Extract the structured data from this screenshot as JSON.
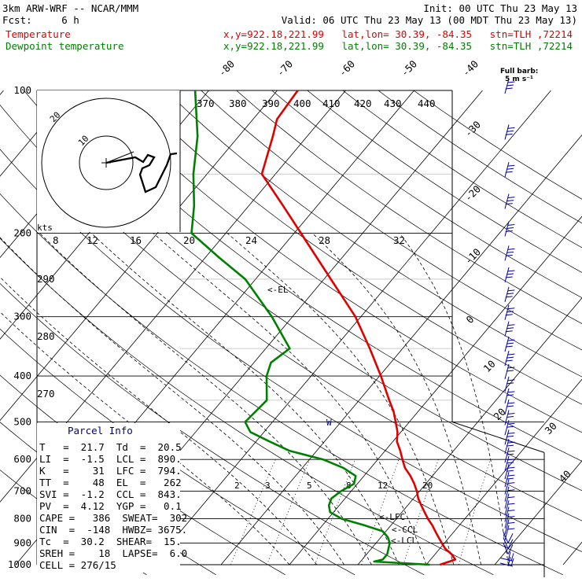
{
  "header": {
    "model": "3km ARW-WRF -- NCAR/MMM",
    "init": "Init: 00 UTC Thu 23 May 13",
    "fcst": "Fcst:     6 h",
    "valid": "Valid: 06 UTC Thu 23 May 13 (00 MDT Thu 23 May 13)",
    "temp_label": "Temperature",
    "temp_loc": "x,y=922.18,221.99   lat,lon= 30.39, -84.35   stn=TLH ,72214",
    "dew_label": "Dewpoint temperature",
    "dew_loc": "x,y=922.18,221.99   lat,lon= 30.39, -84.35   stn=TLH ,72214"
  },
  "colors": {
    "temperature": "#e00000",
    "dewpoint": "#008000",
    "header_red": "#e00000",
    "header_green": "#008000",
    "parcel_title": "#000080",
    "barbs": "#0000a0"
  },
  "barb_legend": {
    "line1": "Full barb:",
    "line2": "5 m s⁻¹"
  },
  "hodograph": {
    "kts_label": "kts",
    "ring_labels": [
      "10",
      "20"
    ]
  },
  "mixing_ratio_labels": [
    "2",
    "3",
    "5",
    "8",
    "12",
    "20"
  ],
  "level_markers": {
    "el": "<-EL",
    "w": "W",
    "lfc": "<-LFC",
    "ccl": "<-CCL",
    "lcl": "<-LCL"
  },
  "parcel_info": {
    "title": "Parcel Info",
    "rows": [
      "T   =  21.7  Td  =  20.5",
      "LI  =  -1.5  LCL =  890.",
      "K   =    31  LFC =  794.",
      "TT  =    48  EL  =   262",
      "SVI =  -1.2  CCL =  843.",
      "PV  =  4.12  YGP =   0.1",
      "CAPE =   386  SWEAT=  302",
      "CIN  =  -148  HWBZ= 3675.",
      "Tc  =  30.2  SHEAR=  15.",
      "SREH =    18  LAPSE=  6.0",
      "CELL = 276/15"
    ]
  },
  "chart_data": {
    "type": "line",
    "title": "3km ARW-WRF -- NCAR/MMM",
    "diagram": "skew-T log-p",
    "y_axis": {
      "label": "",
      "scale": "log",
      "range": [
        1000,
        100
      ],
      "ticks": [
        100,
        200,
        300,
        400,
        500,
        600,
        700,
        800,
        900,
        1000
      ]
    },
    "skewed_isotherm_labels": [
      -80,
      -70,
      -60,
      -50,
      -40,
      -30,
      -20,
      -10,
      0,
      10,
      20,
      30,
      40
    ],
    "theta_labels": [
      370,
      380,
      390,
      400,
      410,
      420,
      430,
      440
    ],
    "theta_side_labels": [
      290,
      280,
      270
    ],
    "theta_e_labels": [
      8,
      12,
      16,
      20,
      24,
      28,
      32
    ],
    "series": [
      {
        "name": "Temperature",
        "color": "#e00000",
        "points": [
          [
            1000,
            22.0
          ],
          [
            985,
            23.0
          ],
          [
            975,
            23.6
          ],
          [
            950,
            22.4
          ],
          [
            925,
            20.8
          ],
          [
            900,
            19.6
          ],
          [
            875,
            18.4
          ],
          [
            850,
            17.2
          ],
          [
            825,
            16.0
          ],
          [
            800,
            14.6
          ],
          [
            775,
            13.3
          ],
          [
            750,
            12.0
          ],
          [
            725,
            10.7
          ],
          [
            700,
            9.6
          ],
          [
            675,
            8.3
          ],
          [
            650,
            6.8
          ],
          [
            625,
            5.0
          ],
          [
            600,
            3.6
          ],
          [
            575,
            2.2
          ],
          [
            550,
            0.6
          ],
          [
            525,
            -0.5
          ],
          [
            500,
            -2.0
          ],
          [
            475,
            -3.6
          ],
          [
            450,
            -5.6
          ],
          [
            400,
            -9.8
          ],
          [
            350,
            -14.8
          ],
          [
            300,
            -20.8
          ],
          [
            250,
            -29.0
          ],
          [
            200,
            -39.0
          ],
          [
            175,
            -45.0
          ],
          [
            150,
            -52.0
          ],
          [
            125,
            -55.0
          ],
          [
            115,
            -56.5
          ],
          [
            100,
            -57.0
          ]
        ]
      },
      {
        "name": "Dewpoint temperature",
        "color": "#008000",
        "points": [
          [
            1000,
            20.5
          ],
          [
            985,
            12.0
          ],
          [
            975,
            13.0
          ],
          [
            950,
            13.0
          ],
          [
            925,
            12.5
          ],
          [
            900,
            12.0
          ],
          [
            875,
            11.0
          ],
          [
            850,
            9.5
          ],
          [
            825,
            6.0
          ],
          [
            800,
            2.0
          ],
          [
            775,
            -0.5
          ],
          [
            750,
            -1.5
          ],
          [
            725,
            -2.0
          ],
          [
            700,
            -1.5
          ],
          [
            675,
            -0.5
          ],
          [
            650,
            -1.2
          ],
          [
            625,
            -4.0
          ],
          [
            600,
            -8.0
          ],
          [
            575,
            -14.0
          ],
          [
            550,
            -18.0
          ],
          [
            525,
            -22.0
          ],
          [
            500,
            -24.0
          ],
          [
            450,
            -23.5
          ],
          [
            400,
            -26.5
          ],
          [
            375,
            -27.5
          ],
          [
            350,
            -26.5
          ],
          [
            300,
            -33.0
          ],
          [
            250,
            -41.5
          ],
          [
            225,
            -48.0
          ],
          [
            200,
            -55.0
          ],
          [
            175,
            -58.0
          ],
          [
            150,
            -62.0
          ],
          [
            125,
            -66.0
          ],
          [
            100,
            -72.0
          ]
        ]
      }
    ],
    "wind_barb_levels": [
      1000,
      975,
      950,
      925,
      900,
      875,
      850,
      825,
      800,
      775,
      750,
      725,
      700,
      675,
      650,
      625,
      600,
      575,
      550,
      525,
      500,
      475,
      450,
      425,
      400,
      375,
      350,
      325,
      300,
      275,
      250,
      225,
      200,
      175,
      150,
      125,
      100
    ]
  }
}
